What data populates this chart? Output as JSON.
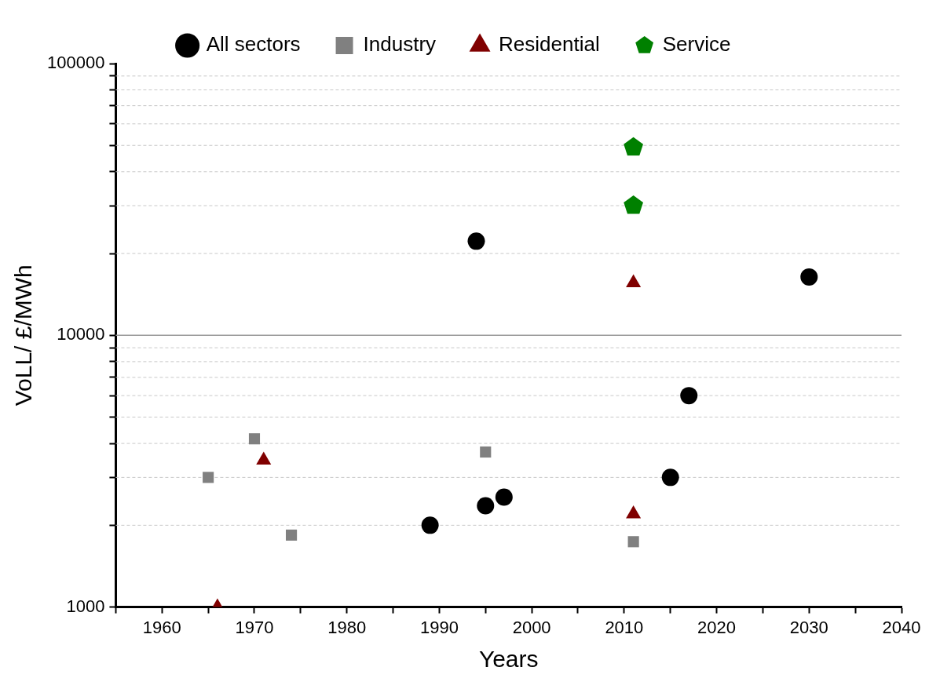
{
  "chart_data": {
    "type": "scatter",
    "xlabel": "Years",
    "ylabel": "VoLL/ £/MWh",
    "log": "y",
    "grid": "y",
    "legend": "top",
    "xlim": [
      1955,
      2040
    ],
    "xticks": [
      {
        "value": 1955,
        "label": null
      },
      1960,
      {
        "value": 1965,
        "label": null
      },
      1970,
      {
        "value": 1975,
        "label": null
      },
      1980,
      {
        "value": 1985,
        "label": null
      },
      1990,
      {
        "value": 1995,
        "label": null
      },
      2000,
      {
        "value": 2005,
        "label": null
      },
      2010,
      {
        "value": 2015,
        "label": null
      },
      2020,
      {
        "value": 2025,
        "label": null
      },
      2030,
      {
        "value": 2035,
        "label": null
      },
      2040
    ],
    "ref_lines": [
      {
        "axis": "y",
        "value": 10000,
        "color": "#999999",
        "line_style": "solid"
      }
    ],
    "ylim": [
      1000,
      100000
    ],
    "yticks": [
      1000,
      {
        "value": 2000,
        "label": null
      },
      {
        "value": 3000,
        "label": null
      },
      {
        "value": 4000,
        "label": null
      },
      {
        "value": 5000,
        "label": null
      },
      {
        "value": 6000,
        "label": null
      },
      {
        "value": 7000,
        "label": null
      },
      {
        "value": 8000,
        "label": null
      },
      {
        "value": 9000,
        "label": null
      },
      10000,
      {
        "value": 20000,
        "label": null
      },
      {
        "value": 30000,
        "label": null
      },
      {
        "value": 40000,
        "label": null
      },
      {
        "value": 50000,
        "label": null
      },
      {
        "value": 60000,
        "label": null
      },
      {
        "value": 70000,
        "label": null
      },
      {
        "value": 80000,
        "label": null
      },
      {
        "value": 90000,
        "label": null
      },
      100000
    ],
    "series": [
      {
        "name": "All sectors",
        "color": "#000000",
        "marker": "circle",
        "x": [
          1989,
          1994,
          1995,
          1997,
          2015,
          2017,
          2030
        ],
        "values": [
          2000,
          22200,
          2360,
          2540,
          3000,
          6000,
          16400
        ]
      },
      {
        "name": "Industry",
        "color": "#808080",
        "marker": "square",
        "x": [
          1965,
          1970,
          1974,
          1995,
          2011
        ],
        "values": [
          3000,
          4160,
          1840,
          3720,
          1740
        ]
      },
      {
        "name": "Residential",
        "color": "#800000",
        "marker": "triangle",
        "x": [
          1966,
          1971,
          2011,
          2011
        ],
        "values": [
          1000,
          3470,
          2200,
          15600
        ]
      },
      {
        "name": "Service",
        "color": "#008000",
        "x": [
          2011,
          2011
        ],
        "values": [
          49200,
          30000
        ]
      }
    ]
  }
}
